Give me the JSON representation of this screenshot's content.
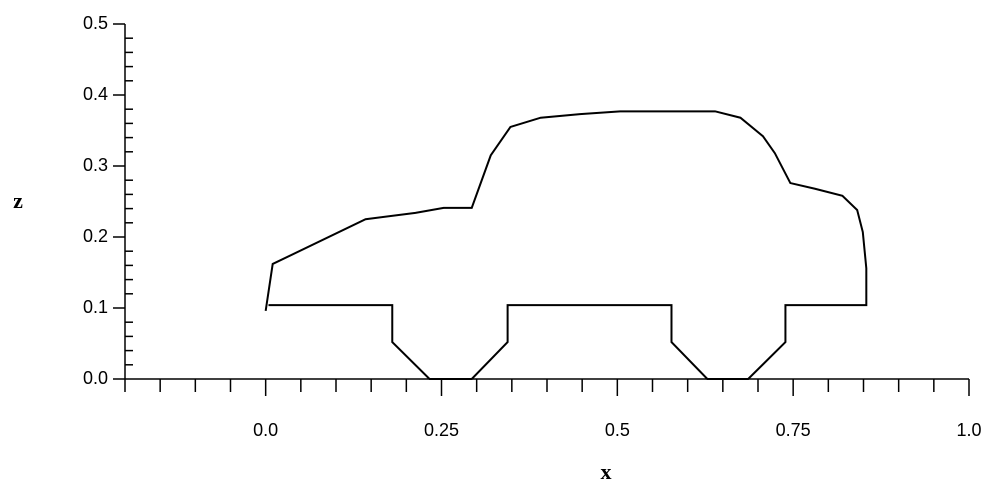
{
  "chart_data": {
    "type": "line",
    "x_label": "x",
    "y_label": "z",
    "x": [
      0,
      0.01,
      0.142,
      0.213,
      0.253,
      0.293,
      0.32,
      0.348,
      0.391,
      0.447,
      0.504,
      0.568,
      0.639,
      0.675,
      0.707,
      0.724,
      0.746,
      0.781,
      0.82,
      0.841,
      0.849,
      0.854,
      0.854,
      0.739,
      0.739,
      0.686,
      0.628,
      0.577,
      0.577,
      0.344,
      0.344,
      0.293,
      0.233,
      0.18,
      0.18,
      0.004
    ],
    "values": [
      0.096,
      0.162,
      0.225,
      0.234,
      0.241,
      0.241,
      0.315,
      0.355,
      0.368,
      0.373,
      0.377,
      0.377,
      0.377,
      0.368,
      0.342,
      0.318,
      0.276,
      0.268,
      0.258,
      0.238,
      0.207,
      0.156,
      0.104,
      0.104,
      0.052,
      0,
      0,
      0.052,
      0.104,
      0.104,
      0.052,
      0,
      0,
      0.052,
      0.104,
      0.104
    ],
    "color": "#000000",
    "xlim": [
      -0.2,
      1.0
    ],
    "ylim": [
      0,
      0.5
    ],
    "xticks": [
      {
        "value": 0,
        "label": "0.0"
      },
      0.25,
      0.5,
      0.75,
      {
        "value": 1.0,
        "label": "1.0"
      }
    ],
    "yticks": [
      {
        "value": 0,
        "label": "0.0"
      },
      0.1,
      0.2,
      0.3,
      0.4,
      0.5
    ],
    "xminorticks": [
      -0.2,
      -0.15,
      -0.1,
      -0.05,
      0.05,
      0.1,
      0.15,
      0.2,
      0.3,
      0.35,
      0.4,
      0.45,
      0.55,
      0.6,
      0.65,
      0.7,
      0.8,
      0.85,
      0.9,
      0.95
    ],
    "yminorticks": [
      0.02,
      0.04,
      0.06,
      0.08,
      0.12,
      0.14,
      0.16,
      0.18,
      0.22,
      0.24,
      0.26,
      0.28,
      0.32,
      0.34,
      0.36,
      0.38,
      0.42,
      0.44,
      0.46,
      0.48
    ],
    "grid": false
  }
}
